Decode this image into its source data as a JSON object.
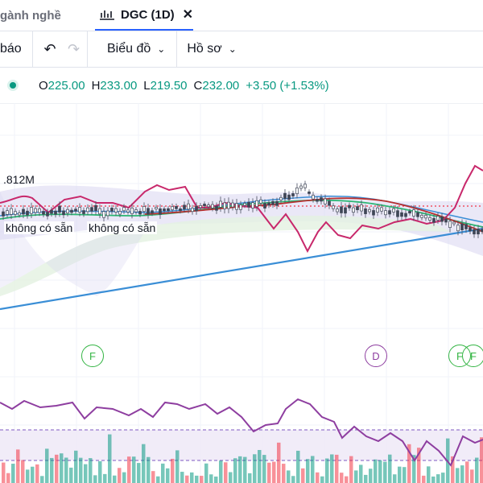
{
  "tabs": {
    "industry_label": "gành nghề",
    "symbol_label": "DGC (1D)",
    "close_symbol": "✕"
  },
  "toolbar": {
    "alert_label": "báo",
    "undo_symbol": "↶",
    "redo_symbol": "↷",
    "chart_label": "Biểu đồ",
    "profile_label": "Hồ sơ",
    "chevron_symbol": "⌄"
  },
  "ohlc": {
    "o_key": "O",
    "o": "225.00",
    "h_key": "H",
    "h": "233.00",
    "l_key": "L",
    "l": "219.50",
    "c_key": "C",
    "c": "232.00",
    "change": "+3.50 (+1.53%)"
  },
  "volume_label": ".812M",
  "not_available": [
    "không có sẵn",
    "không có sẵn"
  ],
  "events": [
    {
      "label": "F",
      "kind": "financial"
    },
    {
      "label": "D",
      "kind": "dividend"
    },
    {
      "label": "F",
      "kind": "financial"
    },
    {
      "label": "F",
      "kind": "financial"
    }
  ],
  "colors": {
    "up": "#089981",
    "down": "#f23645",
    "rsi": "#8e3ea0",
    "trend": "#3a8ed6",
    "event_f": "#35b545",
    "event_d": "#8e3ea0",
    "accent": "#2962ff"
  }
}
